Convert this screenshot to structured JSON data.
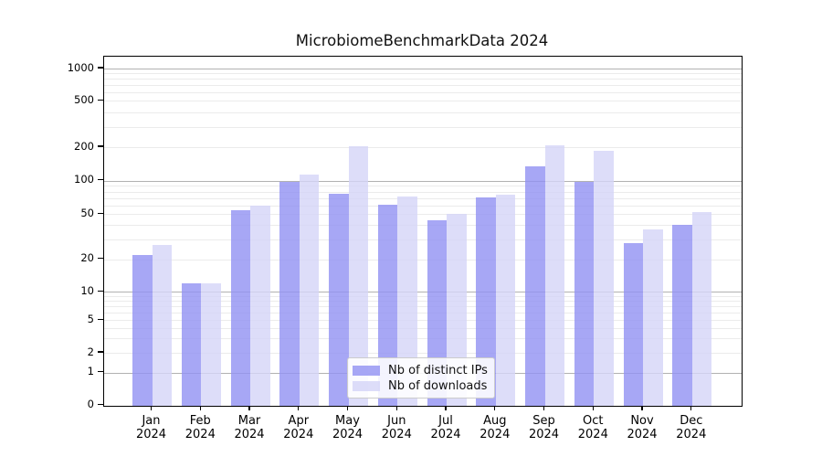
{
  "title": "MicrobiomeBenchmarkData 2024",
  "chart_data": {
    "type": "bar",
    "title": "MicrobiomeBenchmarkData 2024",
    "categories": [
      "Jan",
      "Feb",
      "Mar",
      "Apr",
      "May",
      "Jun",
      "Jul",
      "Aug",
      "Sep",
      "Oct",
      "Nov",
      "Dec"
    ],
    "category_year": "2024",
    "series": [
      {
        "name": "Nb of distinct IPs",
        "color": "rgba(145,145,243,0.8)",
        "values": [
          22,
          12,
          54,
          97,
          77,
          61,
          44,
          71,
          135,
          98,
          28,
          40
        ]
      },
      {
        "name": "Nb of downloads",
        "color": "rgba(212,212,248,0.8)",
        "values": [
          27,
          12,
          60,
          113,
          202,
          72,
          50,
          75,
          208,
          185,
          37,
          52
        ]
      }
    ],
    "xlabel": "",
    "ylabel": "",
    "yscale": "symlog",
    "ylim": [
      0,
      1000
    ],
    "yticks": [
      0,
      1,
      2,
      5,
      10,
      20,
      50,
      100,
      200,
      500,
      1000
    ],
    "major_gridline_values": [
      1,
      10,
      100,
      1000
    ],
    "minor_gridline_values": [
      2,
      3,
      4,
      5,
      6,
      7,
      8,
      9,
      20,
      30,
      40,
      50,
      60,
      70,
      80,
      90,
      200,
      300,
      400,
      500,
      600,
      700,
      800,
      900
    ],
    "grid": true,
    "legend_position": "lower center inside",
    "grid_major_color": "#b2b2b2",
    "grid_minor_color": "#ebebeb",
    "background_color": "#ffffff"
  },
  "legend": {
    "items": [
      {
        "label": "Nb of distinct IPs"
      },
      {
        "label": "Nb of downloads"
      }
    ]
  }
}
